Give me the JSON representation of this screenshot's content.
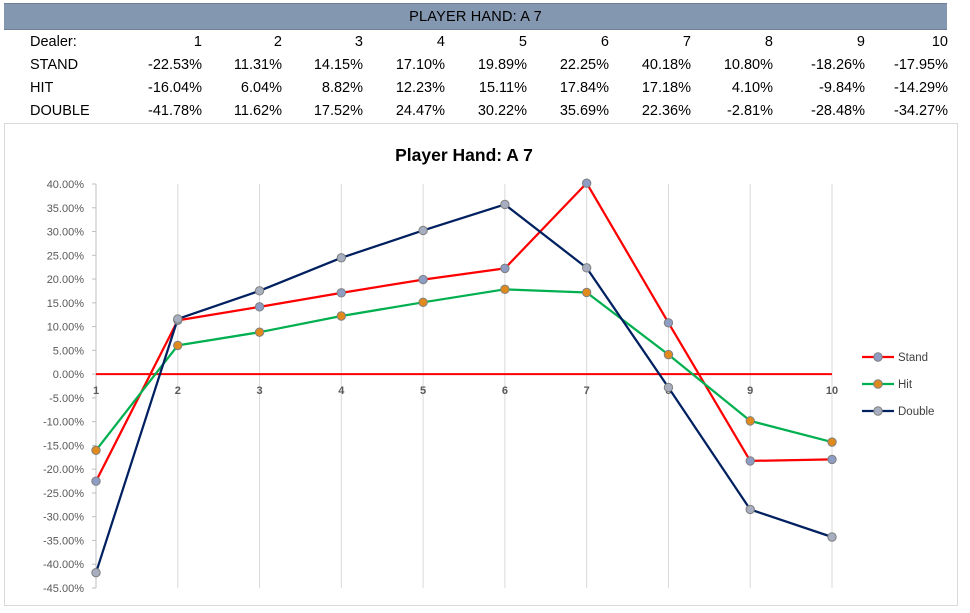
{
  "table": {
    "header_title": "PLAYER HAND: A 7",
    "rows": [
      {
        "label": "Dealer:",
        "cells": [
          "1",
          "2",
          "3",
          "4",
          "5",
          "6",
          "7",
          "8",
          "9",
          "10"
        ]
      },
      {
        "label": "STAND",
        "cells": [
          "-22.53%",
          "11.31%",
          "14.15%",
          "17.10%",
          "19.89%",
          "22.25%",
          "40.18%",
          "10.80%",
          "-18.26%",
          "-17.95%"
        ]
      },
      {
        "label": "HIT",
        "cells": [
          "-16.04%",
          "6.04%",
          "8.82%",
          "12.23%",
          "15.11%",
          "17.84%",
          "17.18%",
          "4.10%",
          "-9.84%",
          "-14.29%"
        ]
      },
      {
        "label": "DOUBLE",
        "cells": [
          "-41.78%",
          "11.62%",
          "17.52%",
          "24.47%",
          "30.22%",
          "35.69%",
          "22.36%",
          "-2.81%",
          "-28.48%",
          "-34.27%"
        ]
      }
    ]
  },
  "chart_data": {
    "type": "line",
    "title": "Player Hand: A 7",
    "xlabel": "",
    "ylabel": "",
    "categories": [
      "1",
      "2",
      "3",
      "4",
      "5",
      "6",
      "7",
      "8",
      "9",
      "10"
    ],
    "ylim": [
      -45,
      40
    ],
    "ytick_step": 5,
    "yticks": [
      "40.00%",
      "35.00%",
      "30.00%",
      "25.00%",
      "20.00%",
      "15.00%",
      "10.00%",
      "5.00%",
      "0.00%",
      "-5.00%",
      "-10.00%",
      "-15.00%",
      "-20.00%",
      "-25.00%",
      "-30.00%",
      "-35.00%",
      "-40.00%",
      "-45.00%"
    ],
    "grid": "vertical",
    "legend_position": "right",
    "series": [
      {
        "name": "Stand",
        "color": "#ff0000",
        "marker_color": "#8e9dc4",
        "values": [
          -22.53,
          11.31,
          14.15,
          17.1,
          19.89,
          22.25,
          40.18,
          10.8,
          -18.26,
          -17.95
        ]
      },
      {
        "name": "Hit",
        "color": "#00b050",
        "marker_color": "#e08a1e",
        "values": [
          -16.04,
          6.04,
          8.82,
          12.23,
          15.11,
          17.84,
          17.18,
          4.1,
          -9.84,
          -14.29
        ]
      },
      {
        "name": "Double",
        "color": "#002060",
        "marker_color": "#a6aebf",
        "values": [
          -41.78,
          11.62,
          17.52,
          24.47,
          30.22,
          35.69,
          22.36,
          -2.81,
          -28.48,
          -34.27
        ]
      }
    ],
    "zero_line_color": "#ff0000",
    "marker_outline": "#7f7f7f"
  }
}
